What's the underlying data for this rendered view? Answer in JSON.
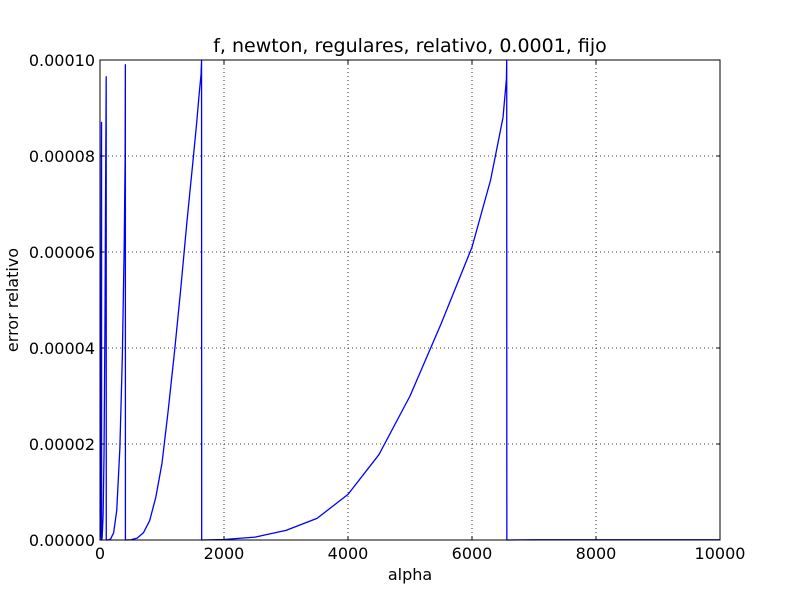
{
  "chart_data": {
    "type": "line",
    "title": "f, newton, regulares, relativo, 0.0001, fijo",
    "xlabel": "alpha",
    "ylabel": "error relativo",
    "xlim": [
      0,
      10000
    ],
    "ylim": [
      0,
      0.0001
    ],
    "x_ticks": [
      0,
      2000,
      4000,
      6000,
      8000,
      10000
    ],
    "x_tick_labels": [
      "0",
      "2000",
      "4000",
      "6000",
      "8000",
      "10000"
    ],
    "y_ticks": [
      0,
      2e-05,
      4e-05,
      6e-05,
      8e-05,
      0.0001
    ],
    "y_tick_labels": [
      "0.00000",
      "0.00002",
      "0.00004",
      "0.00006",
      "0.00008",
      "0.00010"
    ],
    "grid": true,
    "legend": "none",
    "series_color": "#0000ff",
    "series": [
      {
        "x": [
          0,
          2,
          4,
          6,
          8,
          10,
          13,
          16,
          20,
          22,
          24,
          25,
          26,
          28,
          35,
          50,
          65,
          80,
          90,
          100,
          101,
          103,
          130,
          170,
          220,
          270,
          320,
          360,
          390,
          405,
          409,
          410,
          412,
          500,
          600,
          700,
          800,
          900,
          1000,
          1100,
          1200,
          1300,
          1400,
          1500,
          1560,
          1600,
          1630,
          1638,
          1640,
          1642,
          2000,
          2500,
          3000,
          3500,
          4000,
          4500,
          5000,
          5500,
          6000,
          6300,
          6500,
          6555,
          6560,
          6562,
          7000,
          8000,
          9000,
          10000
        ],
        "y": [
          0.0,
          8e-08,
          5.2e-07,
          1.7e-06,
          3.9e-06,
          7.5e-06,
          1.6e-05,
          3.1e-05,
          6e-05,
          7.8e-05,
          8.7e-05,
          8.7e-05,
          0.0,
          0.0,
          6e-07,
          5e-06,
          1.8e-05,
          4.5e-05,
          7.2e-05,
          9.65e-05,
          0.0,
          0.0,
          1e-08,
          2e-07,
          1.5e-06,
          6.2e-06,
          1.9e-05,
          3.8e-05,
          6.1e-05,
          7.9e-05,
          9.9e-05,
          0.0,
          0.0,
          5e-08,
          4e-07,
          1.5e-06,
          4e-06,
          8.9e-06,
          1.6e-05,
          2.7e-05,
          3.9e-05,
          5.2e-05,
          6.6e-05,
          7.9e-05,
          8.7e-05,
          9.3e-05,
          9.7e-05,
          0.0001,
          0.0,
          0.0,
          1e-07,
          6e-07,
          2e-06,
          4.5e-06,
          9.5e-06,
          1.78e-05,
          3e-05,
          4.5e-05,
          6.1e-05,
          7.5e-05,
          8.8e-05,
          9.6e-05,
          0.0001,
          0.0,
          5e-08,
          5e-08,
          5e-08,
          5e-08
        ]
      }
    ]
  }
}
